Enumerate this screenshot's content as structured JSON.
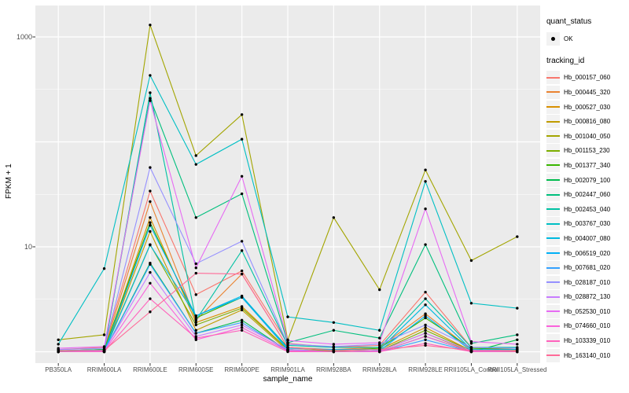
{
  "panel": {
    "bg": "#ebebeb",
    "grid_color": "#ffffff",
    "key_bg": "#f2f2f2",
    "tick_color": "#333333",
    "tick_label_color": "#4d4d4d"
  },
  "axes": {
    "y_title": "FPKM + 1",
    "x_title": "sample_name",
    "y_tick_labels": [
      "1000",
      "10"
    ]
  },
  "legend": {
    "quant_status_title": "quant_status",
    "quant_status_items": [
      {
        "label": "OK",
        "marker": "black-point"
      }
    ],
    "tracking_id_title": "tracking_id"
  },
  "chart_data": {
    "type": "line",
    "title": "",
    "xlabel": "sample_name",
    "ylabel": "FPKM + 1",
    "y_scale": "log10",
    "y_ticks": [
      1000,
      10
    ],
    "ylim": [
      1,
      2000
    ],
    "grid": true,
    "legend_position": "right",
    "point_marker": "small black dot (quant_status = OK) at every sample",
    "categories": [
      "PB350LA",
      "RRIM600LA",
      "RRIM600LE",
      "RRIM600SE",
      "RRIM600PE",
      "RRIM901LA",
      "RRIM928BA",
      "RRIM928LA",
      "RRIM928LE",
      "RRII105LA_Control",
      "RRII105LA_Stressed"
    ],
    "series": [
      {
        "name": "Hb_000157_060",
        "color": "#F8766D",
        "values": [
          1.05,
          1.1,
          34,
          3.5,
          5.9,
          1.2,
          1.1,
          1.15,
          3.7,
          1.1,
          1.05
        ]
      },
      {
        "name": "Hb_000445_320",
        "color": "#EA8331",
        "values": [
          1.02,
          1.05,
          27,
          2.0,
          5.5,
          1.1,
          1.05,
          1.1,
          2.3,
          1.05,
          1.02
        ]
      },
      {
        "name": "Hb_000527_030",
        "color": "#D89000",
        "values": [
          1.02,
          1.02,
          19,
          1.9,
          2.7,
          1.05,
          1.02,
          1.05,
          1.7,
          1.02,
          1.02
        ]
      },
      {
        "name": "Hb_000816_080",
        "color": "#C09B00",
        "values": [
          1.0,
          1.0,
          14,
          1.6,
          2.5,
          1.02,
          1.0,
          1.02,
          1.5,
          1.0,
          1.0
        ]
      },
      {
        "name": "Hb_001040_050",
        "color": "#A3A500",
        "values": [
          1.3,
          1.45,
          1300,
          74,
          182,
          1.3,
          19,
          3.9,
          54,
          7.4,
          12.5
        ]
      },
      {
        "name": "Hb_001153_230",
        "color": "#7CAE00",
        "values": [
          1.0,
          1.02,
          10.5,
          1.8,
          2.6,
          1.05,
          1.0,
          1.02,
          1.6,
          1.02,
          1.0
        ]
      },
      {
        "name": "Hb_001377_340",
        "color": "#39B600",
        "values": [
          1.02,
          1.05,
          17,
          2.1,
          3.3,
          1.1,
          1.02,
          1.08,
          2.1,
          1.08,
          1.05
        ]
      },
      {
        "name": "Hb_002079_100",
        "color": "#00BB4E",
        "values": [
          1.0,
          1.0,
          7.0,
          1.5,
          2.0,
          1.02,
          1.0,
          1.0,
          1.4,
          1.0,
          1.3
        ]
      },
      {
        "name": "Hb_002447_060",
        "color": "#00BF7D",
        "values": [
          1.02,
          1.05,
          260,
          19,
          32,
          1.22,
          1.6,
          1.35,
          10.5,
          1.2,
          1.45
        ]
      },
      {
        "name": "Hb_002453_040",
        "color": "#00C1A3",
        "values": [
          1.0,
          1.02,
          294,
          2.0,
          9.2,
          1.15,
          1.1,
          1.1,
          3.2,
          1.1,
          1.1
        ]
      },
      {
        "name": "Hb_003767_030",
        "color": "#00BFC4",
        "values": [
          1.18,
          6.2,
          430,
          61,
          106,
          2.15,
          1.9,
          1.6,
          42,
          2.9,
          2.6
        ]
      },
      {
        "name": "Hb_004007_080",
        "color": "#00BAE0",
        "values": [
          1.0,
          1.0,
          10.4,
          2.2,
          3.4,
          1.08,
          1.05,
          1.05,
          2.8,
          1.05,
          1.05
        ]
      },
      {
        "name": "Hb_006519_020",
        "color": "#00B0F6",
        "values": [
          1.0,
          1.0,
          16,
          2.2,
          3.3,
          1.05,
          1.0,
          1.02,
          2.2,
          1.02,
          1.0
        ]
      },
      {
        "name": "Hb_007681_020",
        "color": "#35A2FF",
        "values": [
          1.0,
          1.0,
          6.8,
          1.5,
          1.9,
          1.02,
          1.0,
          1.0,
          1.3,
          1.0,
          1.0
        ]
      },
      {
        "name": "Hb_028187_010",
        "color": "#9590FF",
        "values": [
          1.05,
          1.08,
          57,
          6.9,
          11.3,
          1.18,
          1.12,
          1.18,
          1.8,
          1.1,
          1.08
        ]
      },
      {
        "name": "Hb_028872_130",
        "color": "#C77CFF",
        "values": [
          1.0,
          1.02,
          5.7,
          1.4,
          1.8,
          1.05,
          1.0,
          1.02,
          1.5,
          1.02,
          1.0
        ]
      },
      {
        "name": "Hb_052530_010",
        "color": "#E76BF3",
        "values": [
          1.08,
          1.12,
          247,
          6.3,
          47,
          1.28,
          1.18,
          1.22,
          23,
          1.25,
          1.18
        ]
      },
      {
        "name": "Hb_074660_010",
        "color": "#FA62DB",
        "values": [
          1.0,
          1.0,
          4.5,
          1.3,
          1.7,
          1.02,
          1.0,
          1.0,
          1.4,
          1.0,
          1.0
        ]
      },
      {
        "name": "Hb_103339_010",
        "color": "#FF62BC",
        "values": [
          1.0,
          1.0,
          3.2,
          1.35,
          1.6,
          1.0,
          1.0,
          1.0,
          1.2,
          1.0,
          1.0
        ]
      },
      {
        "name": "Hb_163140_010",
        "color": "#FF6A98",
        "values": [
          1.03,
          1.03,
          2.4,
          5.6,
          5.5,
          1.1,
          1.03,
          1.05,
          1.15,
          1.03,
          1.03
        ]
      }
    ]
  }
}
